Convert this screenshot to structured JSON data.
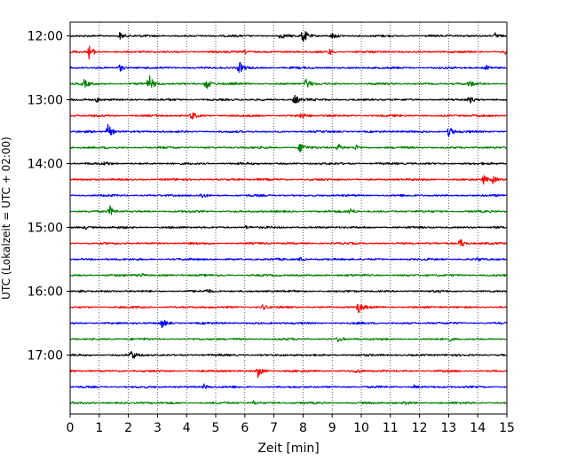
{
  "chart_data": {
    "type": "line",
    "subtype": "helicorder",
    "title": "",
    "xlabel": "Zeit  [min]",
    "ylabel": "UTC (Lokalzeit = UTC + 02:00)",
    "xlim": [
      0,
      15
    ],
    "x_ticks": [
      0,
      1,
      2,
      3,
      4,
      5,
      6,
      7,
      8,
      9,
      10,
      11,
      12,
      13,
      14,
      15
    ],
    "x_tick_labels": [
      "0",
      "1",
      "2",
      "3",
      "4",
      "5",
      "6",
      "7",
      "8",
      "9",
      "10",
      "11",
      "12",
      "13",
      "14",
      "15"
    ],
    "y_tick_labels": [
      "12:00",
      "13:00",
      "14:00",
      "15:00",
      "16:00",
      "17:00"
    ],
    "trace_start_times": [
      "12:00",
      "12:15",
      "12:30",
      "12:45",
      "13:00",
      "13:15",
      "13:30",
      "13:45",
      "14:00",
      "14:15",
      "14:30",
      "14:45",
      "15:00",
      "15:15",
      "15:30",
      "15:45",
      "16:00",
      "16:15",
      "16:30",
      "16:45",
      "17:00",
      "17:15",
      "17:30",
      "17:45"
    ],
    "trace_minutes": 15,
    "color_cycle": [
      "#000000",
      "#ff0000",
      "#0000ff",
      "#008000"
    ],
    "grid": {
      "x": true,
      "style": "dotted"
    },
    "legend": "none",
    "traces": [
      {
        "events": [
          [
            1.7,
            0.6
          ],
          [
            7.2,
            0.5
          ],
          [
            8.0,
            1.3
          ],
          [
            9.0,
            0.5
          ],
          [
            14.6,
            0.6
          ]
        ]
      },
      {
        "events": [
          [
            0.65,
            1.2
          ],
          [
            6.0,
            0.3
          ],
          [
            8.9,
            0.5
          ],
          [
            15.0,
            0.8
          ]
        ]
      },
      {
        "events": [
          [
            1.7,
            0.6
          ],
          [
            5.8,
            1.0
          ],
          [
            14.3,
            0.5
          ]
        ]
      },
      {
        "events": [
          [
            0.45,
            0.7
          ],
          [
            2.7,
            1.5
          ],
          [
            4.65,
            1.3
          ],
          [
            8.1,
            1.0
          ],
          [
            13.7,
            0.5
          ]
        ]
      },
      {
        "events": [
          [
            0.9,
            0.4
          ],
          [
            7.7,
            0.9
          ],
          [
            13.7,
            0.6
          ]
        ]
      },
      {
        "events": [
          [
            4.15,
            0.8
          ],
          [
            7.9,
            0.7
          ]
        ]
      },
      {
        "events": [
          [
            1.3,
            1.2
          ],
          [
            13.0,
            1.0
          ]
        ]
      },
      {
        "events": [
          [
            7.9,
            1.0
          ],
          [
            9.2,
            0.6
          ],
          [
            9.8,
            0.4
          ]
        ]
      },
      {
        "events": [
          [
            1.2,
            0.3
          ]
        ]
      },
      {
        "events": [
          [
            14.2,
            0.7
          ],
          [
            14.5,
            0.6
          ]
        ]
      },
      {
        "events": [
          [
            4.5,
            0.4
          ]
        ]
      },
      {
        "events": [
          [
            1.35,
            0.9
          ],
          [
            9.6,
            0.6
          ]
        ]
      },
      {
        "events": [
          [
            0.5,
            0.3
          ],
          [
            6.0,
            0.3
          ]
        ]
      },
      {
        "events": [
          [
            13.4,
            0.9
          ]
        ]
      },
      {
        "events": [
          [
            7.9,
            0.4
          ],
          [
            14.0,
            0.3
          ]
        ]
      },
      {
        "events": [
          [
            2.4,
            0.4
          ]
        ]
      },
      {
        "events": [
          [
            0.35,
            0.4
          ],
          [
            4.7,
            0.3
          ]
        ]
      },
      {
        "events": [
          [
            6.6,
            0.4
          ],
          [
            9.9,
            1.0
          ]
        ]
      },
      {
        "events": [
          [
            3.15,
            0.8
          ]
        ]
      },
      {
        "events": [
          [
            9.2,
            0.4
          ],
          [
            13.0,
            0.3
          ]
        ]
      },
      {
        "events": [
          [
            2.1,
            0.9
          ]
        ]
      },
      {
        "events": [
          [
            6.45,
            1.0
          ],
          [
            9.8,
            0.4
          ]
        ]
      },
      {
        "events": [
          [
            4.6,
            0.4
          ],
          [
            11.8,
            0.3
          ]
        ]
      },
      {
        "events": [
          [
            6.3,
            0.3
          ],
          [
            11.5,
            0.3
          ]
        ]
      }
    ]
  }
}
